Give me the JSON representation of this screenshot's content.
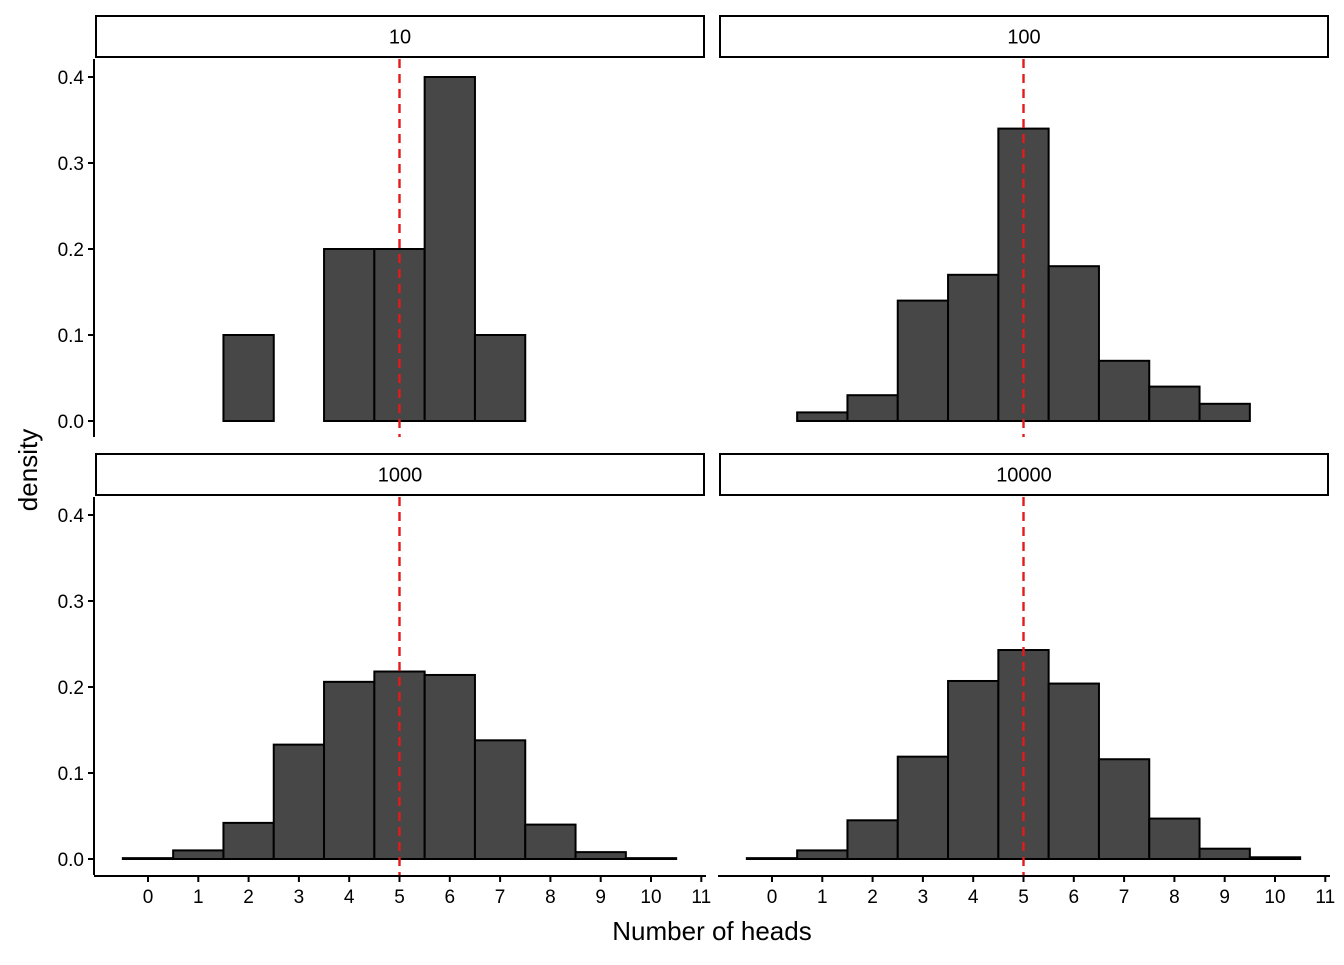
{
  "chart_data": {
    "type": "bar",
    "layout": "facet-grid-2x2",
    "xlabel": "Number of heads",
    "ylabel": "density",
    "xlim": [
      -0.5,
      11
    ],
    "ylim": [
      0,
      0.4
    ],
    "x_ticks": [
      0,
      1,
      2,
      3,
      4,
      5,
      6,
      7,
      8,
      9,
      10,
      11
    ],
    "y_ticks": [
      0.0,
      0.1,
      0.2,
      0.3,
      0.4
    ],
    "y_tick_labels": [
      "0.0",
      "0.1",
      "0.2",
      "0.3",
      "0.4"
    ],
    "bin_width": 1,
    "reference_line": {
      "x": 5,
      "style": "dashed",
      "color": "#e41a1c"
    },
    "bar_fill": "#474747",
    "bar_stroke": "#000000",
    "grid": false,
    "panels": [
      {
        "label": "10",
        "x": [
          0,
          1,
          2,
          3,
          4,
          5,
          6,
          7,
          8,
          9,
          10
        ],
        "values": [
          0,
          0,
          0.1,
          0,
          0.2,
          0.2,
          0.4,
          0.1,
          0,
          0,
          0
        ]
      },
      {
        "label": "100",
        "x": [
          0,
          1,
          2,
          3,
          4,
          5,
          6,
          7,
          8,
          9,
          10
        ],
        "values": [
          0,
          0.01,
          0.03,
          0.14,
          0.17,
          0.34,
          0.18,
          0.07,
          0.04,
          0.02,
          0
        ]
      },
      {
        "label": "1000",
        "x": [
          0,
          1,
          2,
          3,
          4,
          5,
          6,
          7,
          8,
          9,
          10
        ],
        "values": [
          0.001,
          0.01,
          0.042,
          0.133,
          0.206,
          0.218,
          0.214,
          0.138,
          0.04,
          0.008,
          0.001
        ]
      },
      {
        "label": "10000",
        "x": [
          0,
          1,
          2,
          3,
          4,
          5,
          6,
          7,
          8,
          9,
          10
        ],
        "values": [
          0.001,
          0.01,
          0.045,
          0.119,
          0.207,
          0.243,
          0.204,
          0.116,
          0.047,
          0.012,
          0.002
        ]
      }
    ]
  }
}
